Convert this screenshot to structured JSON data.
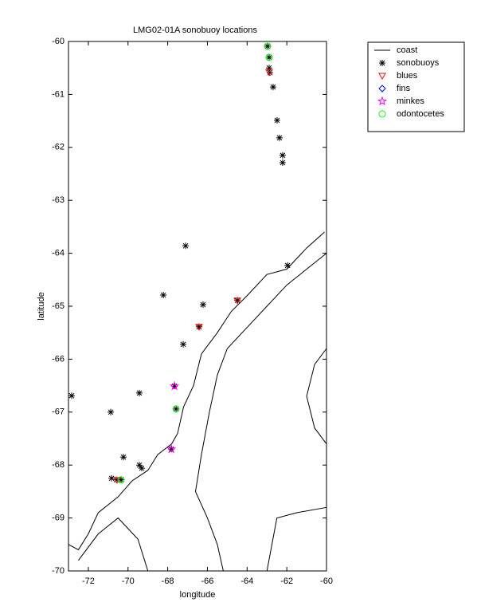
{
  "chart_data": {
    "type": "scatter",
    "title": "LMG02-01A sonobuoy locations",
    "x_label": "longitude",
    "y_label": "latitude",
    "xlim": [
      -73,
      -60
    ],
    "ylim": [
      -70,
      -60
    ],
    "xticks": [
      -72,
      -70,
      -68,
      -66,
      -64,
      -62,
      -60
    ],
    "yticks": [
      -60,
      -61,
      -62,
      -63,
      -64,
      -65,
      -66,
      -67,
      -68,
      -69,
      -70
    ],
    "legend": "outside-upper-right",
    "series": [
      {
        "name": "coast",
        "color": "#000000",
        "marker": "line",
        "x": [
          -60.1,
          -61,
          -62,
          -63,
          -64,
          -64.8,
          -65.5,
          -66.3,
          -66.7,
          -67.2,
          -67.5,
          -67.8,
          -68.5,
          -69,
          -69.8,
          -70.5,
          -71.5,
          -72,
          -72.5,
          -73,
          null,
          -60,
          -61,
          -62,
          -63,
          -64,
          -65,
          -65.5,
          -65.9,
          -66.3,
          -66.6,
          -66,
          -65.5,
          -65.2,
          null,
          -72.5,
          -71.5,
          -70.5,
          -69.5,
          -69,
          null,
          -60,
          -60.6,
          -61,
          -60.6,
          -60,
          null,
          -63,
          -62.5,
          -61.5,
          -60
        ],
        "values": [
          -63.6,
          -63.9,
          -64.3,
          -64.4,
          -64.8,
          -65.1,
          -65.5,
          -65.9,
          -66.5,
          -66.9,
          -67.4,
          -67.6,
          -67.8,
          -68.1,
          -68.3,
          -68.6,
          -68.9,
          -69.3,
          -69.6,
          -69.5,
          null,
          -64.0,
          -64.3,
          -64.6,
          -65.0,
          -65.4,
          -65.8,
          -66.3,
          -67.0,
          -67.8,
          -68.5,
          -69.0,
          -69.5,
          -70,
          null,
          -69.8,
          -69.3,
          -69.0,
          -69.4,
          -70,
          null,
          -65.8,
          -66.1,
          -66.7,
          -67.3,
          -67.6,
          null,
          -70,
          -69.0,
          -68.9,
          -68.8
        ]
      },
      {
        "name": "sonobuoys",
        "color": "#000000",
        "marker": "asterisk",
        "x": [
          -62.97,
          -62.89,
          -62.89,
          -62.85,
          -62.69,
          -62.49,
          -62.37,
          -62.21,
          -62.21,
          -61.96,
          -67.1,
          -68.22,
          -66.22,
          -64.49,
          -66.42,
          -67.22,
          -72.84,
          -69.43,
          -70.87,
          -67.66,
          -67.58,
          -67.82,
          -70.23,
          -69.43,
          -69.31,
          -70.83,
          -70.59,
          -70.35
        ],
        "values": [
          -60.09,
          -60.3,
          -60.5,
          -60.59,
          -60.86,
          -61.49,
          -61.82,
          -62.15,
          -62.29,
          -64.23,
          -63.86,
          -64.79,
          -64.97,
          -64.89,
          -65.39,
          -65.72,
          -66.69,
          -66.64,
          -67.0,
          -66.51,
          -66.94,
          -67.7,
          -67.85,
          -68.0,
          -68.06,
          -68.25,
          -68.28,
          -68.28
        ]
      },
      {
        "name": "blues",
        "color": "#ff0000",
        "marker": "triangle-down",
        "x": [
          -62.89,
          -64.49,
          -66.42,
          -70.55
        ],
        "values": [
          -60.58,
          -64.89,
          -65.39,
          -68.28
        ]
      },
      {
        "name": "fins",
        "color": "#0000ff",
        "marker": "diamond",
        "x": [],
        "values": []
      },
      {
        "name": "minkes",
        "color": "#ff00ff",
        "marker": "star",
        "x": [
          -67.66,
          -67.82
        ],
        "values": [
          -66.51,
          -67.7
        ]
      },
      {
        "name": "odontocetes",
        "color": "#00ff00",
        "marker": "circle",
        "x": [
          -62.97,
          -62.89,
          -67.58,
          -70.35
        ],
        "values": [
          -60.09,
          -60.3,
          -66.94,
          -68.28
        ]
      }
    ]
  }
}
